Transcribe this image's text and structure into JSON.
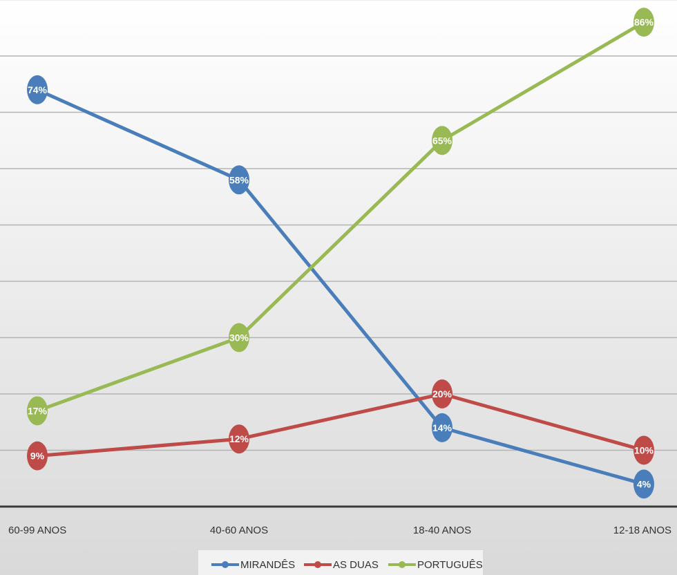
{
  "chart_data": {
    "type": "line",
    "title": "",
    "xlabel": "",
    "ylabel": "",
    "categories": [
      "60-99 ANOS",
      "40-60 ANOS",
      "18-40 ANOS",
      "12-18 ANOS"
    ],
    "ylim": [
      0,
      90
    ],
    "grid": true,
    "legend_position": "bottom",
    "series": [
      {
        "name": "MIRANDÊS",
        "color": "#4a7ebb",
        "values": [
          74,
          58,
          14,
          4
        ],
        "labels": [
          "74%",
          "58%",
          "14%",
          "4%"
        ]
      },
      {
        "name": "AS DUAS",
        "color": "#be4b48",
        "values": [
          9,
          12,
          20,
          10
        ],
        "labels": [
          "9%",
          "12%",
          "20%",
          "10%"
        ]
      },
      {
        "name": "PORTUGUÊS",
        "color": "#98b954",
        "values": [
          17,
          30,
          65,
          86
        ],
        "labels": [
          "17%",
          "30%",
          "65%",
          "86%"
        ]
      }
    ]
  }
}
